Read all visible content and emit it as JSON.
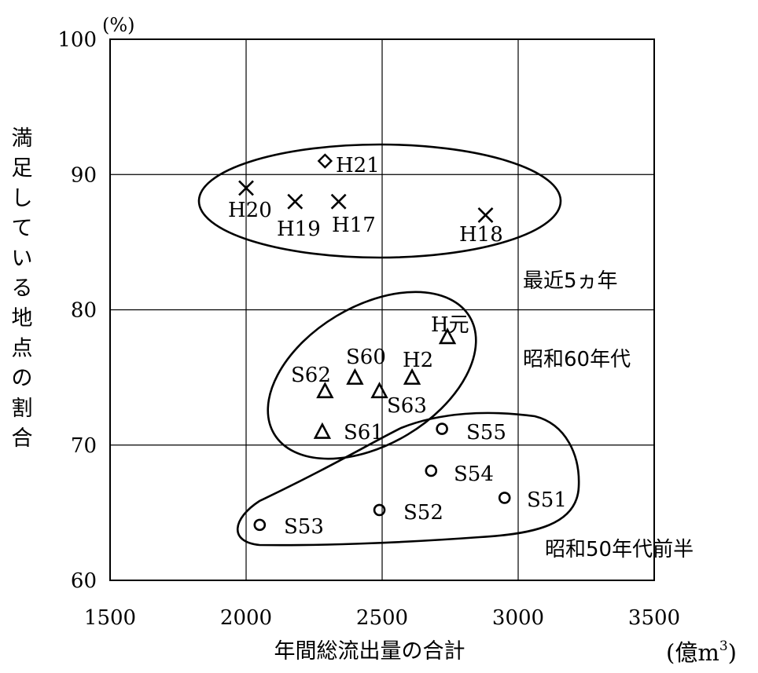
{
  "chart_data": {
    "type": "scatter",
    "x_axis": {
      "range": [
        1500,
        3500
      ],
      "ticks": [
        1500,
        2000,
        2500,
        3000,
        3500
      ],
      "tick_labels": [
        "1500",
        "2000",
        "2500",
        "3000",
        "3500"
      ],
      "label": "年間総流出量の合計",
      "unit": "(億m",
      "unit_superscript": "3",
      "unit_close": ")"
    },
    "y_axis": {
      "range": [
        60,
        100
      ],
      "ticks": [
        60,
        70,
        80,
        90,
        100
      ],
      "tick_labels": [
        "60",
        "70",
        "80",
        "90",
        "100"
      ],
      "label": "満足している地点の割合",
      "unit": "(%)"
    },
    "grid": true,
    "series": [
      {
        "marker": "cross",
        "points": [
          {
            "label": "H20",
            "x": 2000,
            "y": 89
          },
          {
            "label": "H19",
            "x": 2180,
            "y": 88
          },
          {
            "label": "H17",
            "x": 2340,
            "y": 88
          },
          {
            "label": "H18",
            "x": 2880,
            "y": 87
          }
        ]
      },
      {
        "marker": "diamond",
        "points": [
          {
            "label": "H21",
            "x": 2290,
            "y": 91
          }
        ]
      },
      {
        "marker": "triangle",
        "points": [
          {
            "label": "H元",
            "x": 2740,
            "y": 78
          },
          {
            "label": "S60",
            "x": 2400,
            "y": 75
          },
          {
            "label": "H2",
            "x": 2610,
            "y": 75
          },
          {
            "label": "S62",
            "x": 2290,
            "y": 74
          },
          {
            "label": "S63",
            "x": 2490,
            "y": 74
          },
          {
            "label": "S61",
            "x": 2280,
            "y": 71
          }
        ]
      },
      {
        "marker": "circle",
        "points": [
          {
            "label": "S55",
            "x": 2720,
            "y": 71.2
          },
          {
            "label": "S54",
            "x": 2680,
            "y": 68.1
          },
          {
            "label": "S51",
            "x": 2950,
            "y": 66.1
          },
          {
            "label": "S52",
            "x": 2490,
            "y": 65.2
          },
          {
            "label": "S53",
            "x": 2050,
            "y": 64.1
          }
        ]
      }
    ],
    "groups": [
      {
        "label": "最近5ヵ年"
      },
      {
        "label": "昭和60年代"
      },
      {
        "label": "昭和50年代前半"
      }
    ]
  }
}
